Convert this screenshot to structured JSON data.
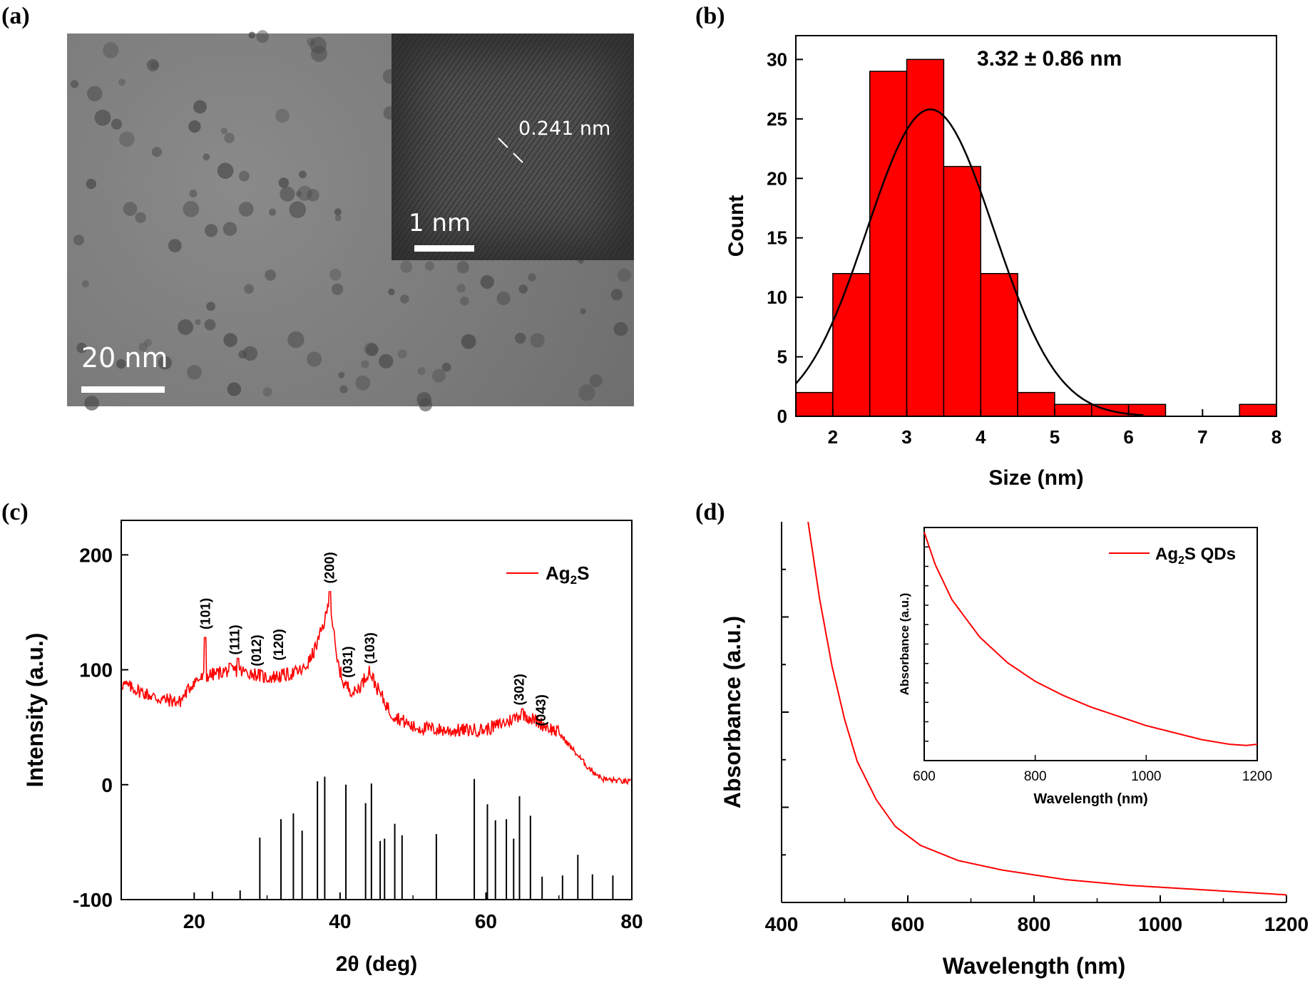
{
  "panels": {
    "a": {
      "label": "(a)",
      "scale_main": "20 nm",
      "scale_inset": "1 nm",
      "lattice": "0.241 nm"
    },
    "b": {
      "label": "(b)"
    },
    "c": {
      "label": "(c)"
    },
    "d": {
      "label": "(d)"
    }
  },
  "chart_data": [
    {
      "id": "b",
      "type": "bar",
      "xlabel": "Size (nm)",
      "ylabel": "Count",
      "xlim": [
        1.5,
        8
      ],
      "ylim": [
        0,
        32
      ],
      "xticks": [
        2,
        3,
        4,
        5,
        6,
        7,
        8
      ],
      "yticks": [
        0,
        5,
        10,
        15,
        20,
        25,
        30
      ],
      "bin_width": 0.5,
      "bins": [
        {
          "x": 1.75,
          "count": 2
        },
        {
          "x": 2.25,
          "count": 12
        },
        {
          "x": 2.75,
          "count": 29
        },
        {
          "x": 3.25,
          "count": 30
        },
        {
          "x": 3.75,
          "count": 21
        },
        {
          "x": 4.25,
          "count": 12
        },
        {
          "x": 4.75,
          "count": 2
        },
        {
          "x": 5.25,
          "count": 1
        },
        {
          "x": 5.75,
          "count": 1
        },
        {
          "x": 6.25,
          "count": 1
        },
        {
          "x": 7.75,
          "count": 1
        }
      ],
      "fit": {
        "mean": 3.32,
        "sigma": 0.86,
        "peak": 25.8
      },
      "annotation": "3.32 ± 0.86 nm",
      "bar_color": "#ff0000"
    },
    {
      "id": "c",
      "type": "line",
      "xlabel": "2θ (deg)",
      "ylabel": "Intensity (a.u.)",
      "xlim": [
        10,
        80
      ],
      "ylim": [
        -100,
        230
      ],
      "xticks": [
        20,
        40,
        60,
        80
      ],
      "yticks": [
        -100,
        0,
        100,
        200
      ],
      "legend": "Ag2S",
      "line_color": "#ff0000",
      "series_profile": [
        [
          10,
          88
        ],
        [
          15,
          75
        ],
        [
          18,
          72
        ],
        [
          20,
          90
        ],
        [
          22,
          95
        ],
        [
          25,
          100
        ],
        [
          28,
          97
        ],
        [
          30,
          93
        ],
        [
          33,
          96
        ],
        [
          35,
          100
        ],
        [
          36,
          110
        ],
        [
          37,
          125
        ],
        [
          38,
          145
        ],
        [
          38.5,
          160
        ],
        [
          39,
          140
        ],
        [
          39.5,
          110
        ],
        [
          40.5,
          88
        ],
        [
          42,
          80
        ],
        [
          43,
          88
        ],
        [
          44,
          100
        ],
        [
          45,
          85
        ],
        [
          47,
          62
        ],
        [
          50,
          50
        ],
        [
          55,
          47
        ],
        [
          60,
          48
        ],
        [
          63,
          55
        ],
        [
          65,
          62
        ],
        [
          67,
          55
        ],
        [
          70,
          45
        ],
        [
          72,
          30
        ],
        [
          74,
          15
        ],
        [
          76,
          5
        ],
        [
          80,
          2
        ]
      ],
      "spikes": [
        [
          21.5,
          128
        ],
        [
          26,
          110
        ],
        [
          38.6,
          168
        ],
        [
          65,
          66
        ]
      ],
      "peak_labels": [
        {
          "x": 21.5,
          "y": 135,
          "text": "(101)"
        },
        {
          "x": 25.5,
          "y": 113,
          "text": "(111)"
        },
        {
          "x": 28.5,
          "y": 103,
          "text": "(012)"
        },
        {
          "x": 31.5,
          "y": 108,
          "text": "(120)"
        },
        {
          "x": 38.5,
          "y": 175,
          "text": "(200)"
        },
        {
          "x": 41,
          "y": 93,
          "text": "(031)"
        },
        {
          "x": 44,
          "y": 105,
          "text": "(103)"
        },
        {
          "x": 64.5,
          "y": 69,
          "text": "(302)"
        },
        {
          "x": 67.5,
          "y": 51,
          "text": "(043)"
        }
      ],
      "reference_lines": [
        [
          22.5,
          -93
        ],
        [
          26.3,
          -92
        ],
        [
          29,
          -46
        ],
        [
          31.9,
          -30
        ],
        [
          33.6,
          -25
        ],
        [
          34.8,
          -40
        ],
        [
          36.9,
          3
        ],
        [
          37.9,
          7
        ],
        [
          40.8,
          0
        ],
        [
          43.5,
          -16
        ],
        [
          44.3,
          1
        ],
        [
          45.5,
          -49
        ],
        [
          46.1,
          -47
        ],
        [
          47.5,
          -34
        ],
        [
          48.5,
          -44
        ],
        [
          53.2,
          -43
        ],
        [
          58.4,
          5
        ],
        [
          60.2,
          -17
        ],
        [
          61.3,
          -31
        ],
        [
          62.8,
          -30
        ],
        [
          63.8,
          -47
        ],
        [
          64.6,
          -10
        ],
        [
          66.1,
          -27
        ],
        [
          67.7,
          -80
        ],
        [
          70.5,
          -79
        ],
        [
          72.6,
          -61
        ],
        [
          74.6,
          -78
        ],
        [
          77.4,
          -79
        ]
      ]
    },
    {
      "id": "d",
      "type": "line",
      "xlabel": "Wavelength (nm)",
      "ylabel": "Absorbance (a.u.)",
      "xlim": [
        400,
        1200
      ],
      "ylim": [
        0,
        1
      ],
      "xticks": [
        400,
        600,
        800,
        1000,
        1200
      ],
      "line_color": "#ff0000",
      "series_profile": [
        [
          442,
          1.0
        ],
        [
          460,
          0.8
        ],
        [
          480,
          0.62
        ],
        [
          500,
          0.48
        ],
        [
          520,
          0.37
        ],
        [
          550,
          0.27
        ],
        [
          580,
          0.2
        ],
        [
          620,
          0.15
        ],
        [
          680,
          0.11
        ],
        [
          750,
          0.085
        ],
        [
          850,
          0.06
        ],
        [
          950,
          0.045
        ],
        [
          1050,
          0.035
        ],
        [
          1150,
          0.025
        ],
        [
          1200,
          0.02
        ]
      ],
      "inset": {
        "xlabel": "Wavelength (nm)",
        "ylabel": "Absorbance (a.u.)",
        "xlim": [
          600,
          1200
        ],
        "ylim": [
          0,
          1
        ],
        "xticks": [
          600,
          800,
          1000,
          1200
        ],
        "legend": "Ag2S QDs",
        "series_profile": [
          [
            600,
            0.98
          ],
          [
            620,
            0.84
          ],
          [
            650,
            0.69
          ],
          [
            700,
            0.53
          ],
          [
            750,
            0.42
          ],
          [
            800,
            0.34
          ],
          [
            850,
            0.28
          ],
          [
            900,
            0.23
          ],
          [
            950,
            0.19
          ],
          [
            1000,
            0.15
          ],
          [
            1050,
            0.12
          ],
          [
            1100,
            0.09
          ],
          [
            1150,
            0.07
          ],
          [
            1180,
            0.065
          ],
          [
            1200,
            0.07
          ]
        ]
      }
    }
  ]
}
